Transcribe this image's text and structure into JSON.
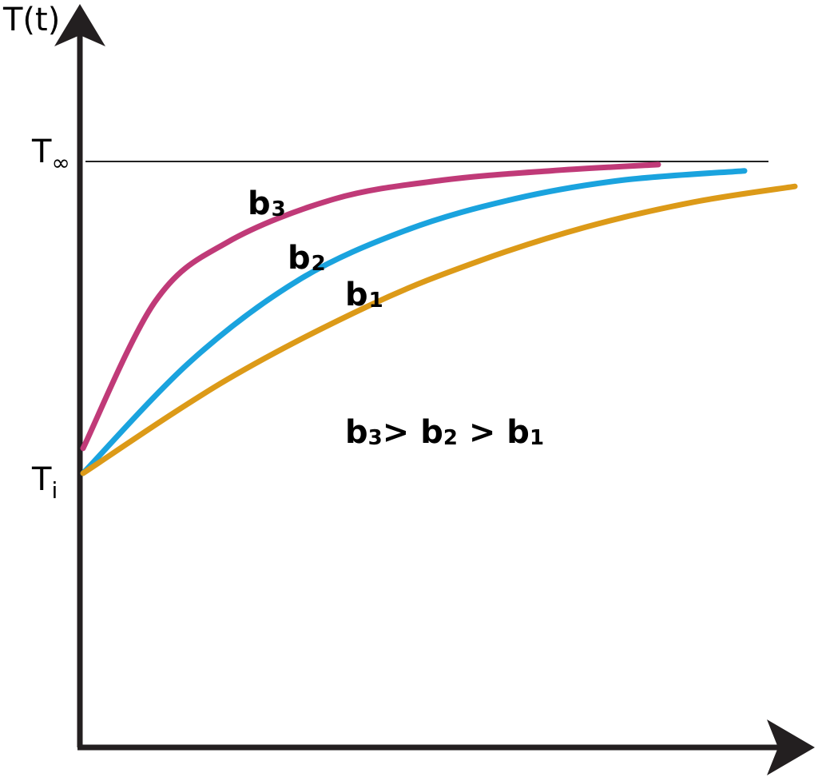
{
  "chart_data": {
    "type": "line",
    "ylabel": "T(t)",
    "xlabel": "",
    "y_ticks": {
      "upper": {
        "base": "T",
        "sub": "∞"
      },
      "lower": {
        "base": "T",
        "sub": "i"
      }
    },
    "reference_line": {
      "label": "T∞",
      "value": 1.0
    },
    "series": [
      {
        "name": "b3",
        "base": "b",
        "sub": "3",
        "color": "#c03a78",
        "x": [
          0,
          0.1,
          0.2,
          0.35,
          0.5,
          0.65,
          0.8
        ],
        "y": [
          0.08,
          0.55,
          0.74,
          0.88,
          0.94,
          0.97,
          0.99
        ]
      },
      {
        "name": "b2",
        "base": "b",
        "sub": "2",
        "color": "#1aa3de",
        "x": [
          0,
          0.15,
          0.3,
          0.45,
          0.6,
          0.75,
          0.92
        ],
        "y": [
          0.0,
          0.36,
          0.62,
          0.78,
          0.88,
          0.94,
          0.97
        ]
      },
      {
        "name": "b1",
        "base": "b",
        "sub": "1",
        "color": "#dc9a18",
        "x": [
          0,
          0.2,
          0.4,
          0.55,
          0.7,
          0.85,
          0.99
        ],
        "y": [
          0.0,
          0.3,
          0.54,
          0.68,
          0.79,
          0.87,
          0.92
        ]
      }
    ],
    "annotation": {
      "parts": [
        {
          "base": "b",
          "sub": "3"
        },
        {
          "sep": "> "
        },
        {
          "base": "b",
          "sub": "2"
        },
        {
          "sep": " > "
        },
        {
          "base": "b",
          "sub": "1"
        }
      ]
    },
    "xlim": [
      0,
      1.0
    ],
    "ylim": [
      -0.6,
      1.35
    ],
    "grid": false,
    "legend": "none"
  }
}
